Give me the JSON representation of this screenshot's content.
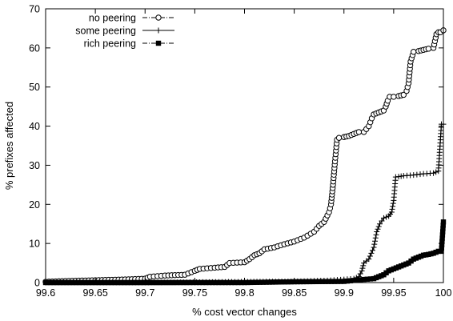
{
  "chart_data": {
    "type": "line",
    "title": "",
    "xlabel": "% cost vector changes",
    "ylabel": "% prefixes affected",
    "xlim": [
      99.6,
      100
    ],
    "ylim": [
      0,
      70
    ],
    "xticks": [
      "99.6",
      "99.65",
      "99.7",
      "99.75",
      "99.8",
      "99.85",
      "99.9",
      "99.95",
      "100"
    ],
    "yticks": [
      "0",
      "10",
      "20",
      "30",
      "40",
      "50",
      "60",
      "70"
    ],
    "grid": false,
    "legend_position": "top-left",
    "series": [
      {
        "name": "no peering",
        "marker": "circle-dot",
        "line_style": "dash-dot",
        "x": [
          99.6,
          99.62,
          99.65,
          99.68,
          99.7,
          99.705,
          99.72,
          99.74,
          99.75,
          99.755,
          99.77,
          99.78,
          99.785,
          99.8,
          99.805,
          99.81,
          99.815,
          99.82,
          99.83,
          99.84,
          99.85,
          99.86,
          99.87,
          99.875,
          99.88,
          99.885,
          99.887,
          99.889,
          99.891,
          99.893,
          99.895,
          99.9,
          99.905,
          99.91,
          99.915,
          99.92,
          99.925,
          99.928,
          99.93,
          99.935,
          99.94,
          99.942,
          99.944,
          99.946,
          99.95,
          99.955,
          99.96,
          99.963,
          99.965,
          99.967,
          99.97,
          99.975,
          99.98,
          99.985,
          99.99,
          99.993,
          99.995,
          99.997,
          100
        ],
        "y": [
          0.2,
          0.4,
          0.6,
          0.8,
          1.0,
          1.5,
          1.8,
          2.0,
          3.0,
          3.5,
          3.8,
          4.0,
          5.0,
          5.2,
          6.0,
          7.0,
          7.5,
          8.5,
          9.0,
          9.8,
          10.5,
          11.5,
          13.0,
          14.5,
          15.5,
          18.0,
          20.0,
          25.0,
          31.0,
          36.5,
          37.0,
          37.2,
          37.5,
          38.0,
          38.5,
          38.5,
          40.0,
          42.0,
          43.0,
          43.5,
          44.0,
          45.0,
          46.5,
          47.5,
          47.5,
          47.7,
          48.0,
          49.0,
          51.0,
          56.5,
          59.0,
          59.2,
          59.5,
          59.8,
          60.0,
          63.5,
          64.0,
          64.0,
          64.5
        ]
      },
      {
        "name": "some peering",
        "marker": "plus",
        "line_style": "solid",
        "x": [
          99.6,
          99.7,
          99.8,
          99.85,
          99.88,
          99.9,
          99.91,
          99.915,
          99.918,
          99.92,
          99.925,
          99.93,
          99.933,
          99.936,
          99.94,
          99.945,
          99.948,
          99.95,
          99.952,
          99.955,
          99.96,
          99.97,
          99.98,
          99.99,
          99.995,
          99.998,
          100
        ],
        "y": [
          0,
          0,
          0.2,
          0.3,
          0.5,
          0.8,
          1.0,
          1.5,
          3.0,
          5.0,
          6.0,
          9.0,
          13.0,
          15.0,
          16.5,
          17.0,
          18.0,
          21.0,
          27.0,
          27.1,
          27.3,
          27.5,
          27.8,
          28.0,
          28.5,
          40.5,
          40.5
        ]
      },
      {
        "name": "rich peering",
        "marker": "filled-square",
        "line_style": "dash-dot",
        "x": [
          99.6,
          99.7,
          99.8,
          99.85,
          99.9,
          99.92,
          99.93,
          99.935,
          99.94,
          99.945,
          99.95,
          99.955,
          99.96,
          99.965,
          99.97,
          99.975,
          99.98,
          99.985,
          99.99,
          99.995,
          99.998,
          100
        ],
        "y": [
          0,
          0,
          0,
          0.2,
          0.3,
          0.8,
          1.0,
          1.5,
          2.0,
          3.0,
          3.5,
          4.0,
          4.5,
          5.0,
          6.0,
          6.5,
          7.0,
          7.2,
          7.5,
          8.0,
          8.0,
          15.5
        ]
      }
    ]
  }
}
